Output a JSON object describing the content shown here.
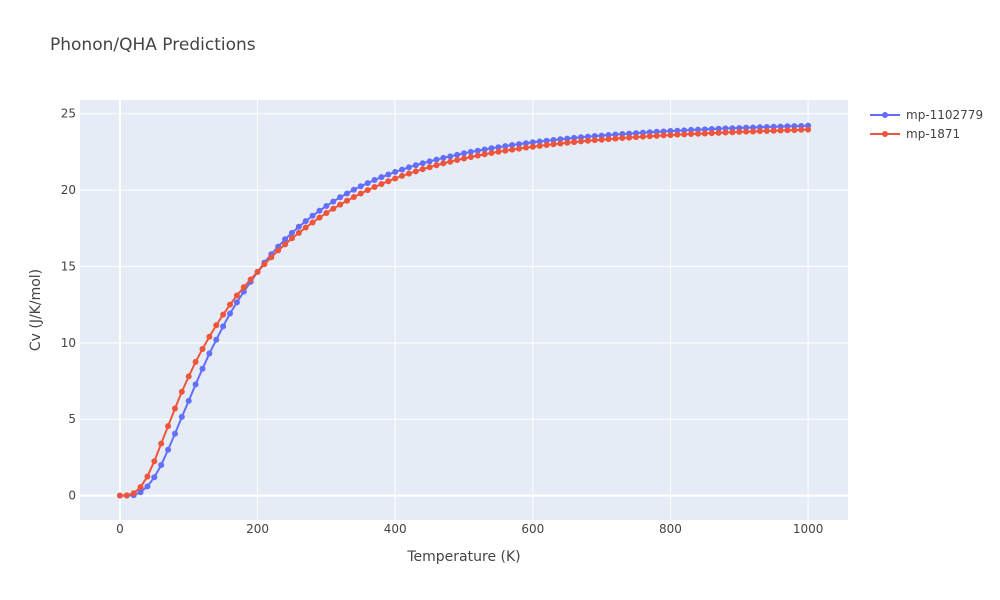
{
  "chart_data": {
    "type": "line",
    "title": "Phonon/QHA Predictions",
    "xlabel": "Temperature (K)",
    "ylabel": "Cv (J/K/mol)",
    "xlim": [
      -58,
      1058
    ],
    "ylim": [
      -1.6,
      25.9
    ],
    "xticks": [
      0,
      200,
      400,
      600,
      800,
      1000
    ],
    "yticks": [
      0,
      5,
      10,
      15,
      20,
      25
    ],
    "grid": true,
    "legend_position": "top-right",
    "series": [
      {
        "name": "mp-1102779",
        "color": "#636efa",
        "x": [
          0,
          10,
          20,
          30,
          40,
          50,
          60,
          70,
          80,
          90,
          100,
          110,
          120,
          130,
          140,
          150,
          160,
          170,
          180,
          190,
          200,
          210,
          220,
          230,
          240,
          250,
          260,
          270,
          280,
          290,
          300,
          310,
          320,
          330,
          340,
          350,
          360,
          370,
          380,
          390,
          400,
          410,
          420,
          430,
          440,
          450,
          460,
          470,
          480,
          490,
          500,
          510,
          520,
          530,
          540,
          550,
          560,
          570,
          580,
          590,
          600,
          610,
          620,
          630,
          640,
          650,
          660,
          670,
          680,
          690,
          700,
          710,
          720,
          730,
          740,
          750,
          760,
          770,
          780,
          790,
          800,
          810,
          820,
          830,
          840,
          850,
          860,
          870,
          880,
          890,
          900,
          910,
          920,
          930,
          940,
          950,
          960,
          970,
          980,
          990,
          1000
        ],
        "y": [
          0,
          0,
          0.03,
          0.22,
          0.6,
          1.2,
          2.0,
          3.0,
          4.05,
          5.15,
          6.2,
          7.28,
          8.3,
          9.3,
          10.2,
          11.08,
          11.92,
          12.65,
          13.35,
          14.0,
          14.65,
          15.25,
          15.8,
          16.3,
          16.78,
          17.2,
          17.6,
          17.97,
          18.32,
          18.65,
          18.96,
          19.25,
          19.53,
          19.78,
          20.02,
          20.25,
          20.46,
          20.66,
          20.85,
          21.02,
          21.19,
          21.34,
          21.49,
          21.63,
          21.76,
          21.88,
          22.0,
          22.11,
          22.21,
          22.31,
          22.41,
          22.5,
          22.58,
          22.66,
          22.74,
          22.81,
          22.88,
          22.95,
          23.01,
          23.07,
          23.13,
          23.18,
          23.23,
          23.28,
          23.33,
          23.37,
          23.42,
          23.46,
          23.5,
          23.54,
          23.57,
          23.61,
          23.64,
          23.67,
          23.7,
          23.73,
          23.76,
          23.79,
          23.82,
          23.84,
          23.87,
          23.89,
          23.91,
          23.94,
          23.96,
          23.98,
          24.0,
          24.02,
          24.04,
          24.05,
          24.07,
          24.09,
          24.1,
          24.12,
          24.13,
          24.15,
          24.16,
          24.18,
          24.19,
          24.2,
          24.22
        ]
      },
      {
        "name": "mp-1871",
        "color": "#ef553b",
        "x": [
          0,
          10,
          20,
          30,
          40,
          50,
          60,
          70,
          80,
          90,
          100,
          110,
          120,
          130,
          140,
          150,
          160,
          170,
          180,
          190,
          200,
          210,
          220,
          230,
          240,
          250,
          260,
          270,
          280,
          290,
          300,
          310,
          320,
          330,
          340,
          350,
          360,
          370,
          380,
          390,
          400,
          410,
          420,
          430,
          440,
          450,
          460,
          470,
          480,
          490,
          500,
          510,
          520,
          530,
          540,
          550,
          560,
          570,
          580,
          590,
          600,
          610,
          620,
          630,
          640,
          650,
          660,
          670,
          680,
          690,
          700,
          710,
          720,
          730,
          740,
          750,
          760,
          770,
          780,
          790,
          800,
          810,
          820,
          830,
          840,
          850,
          860,
          870,
          880,
          890,
          900,
          910,
          920,
          930,
          940,
          950,
          960,
          970,
          980,
          990,
          1000
        ],
        "y": [
          0,
          0.01,
          0.15,
          0.55,
          1.25,
          2.25,
          3.4,
          4.55,
          5.7,
          6.8,
          7.8,
          8.75,
          9.6,
          10.4,
          11.15,
          11.85,
          12.5,
          13.1,
          13.65,
          14.15,
          14.65,
          15.15,
          15.6,
          16.05,
          16.45,
          16.85,
          17.2,
          17.55,
          17.88,
          18.2,
          18.5,
          18.78,
          19.05,
          19.3,
          19.55,
          19.78,
          20.0,
          20.2,
          20.4,
          20.58,
          20.76,
          20.93,
          21.08,
          21.23,
          21.37,
          21.5,
          21.63,
          21.75,
          21.86,
          21.97,
          22.07,
          22.17,
          22.26,
          22.35,
          22.43,
          22.51,
          22.58,
          22.65,
          22.72,
          22.78,
          22.84,
          22.9,
          22.95,
          23.0,
          23.05,
          23.1,
          23.14,
          23.19,
          23.23,
          23.27,
          23.3,
          23.34,
          23.37,
          23.41,
          23.44,
          23.47,
          23.5,
          23.53,
          23.55,
          23.58,
          23.6,
          23.63,
          23.65,
          23.67,
          23.69,
          23.71,
          23.73,
          23.75,
          23.77,
          23.79,
          23.81,
          23.83,
          23.84,
          23.86,
          23.87,
          23.89,
          23.9,
          23.92,
          23.93,
          23.95,
          23.96
        ]
      }
    ]
  }
}
